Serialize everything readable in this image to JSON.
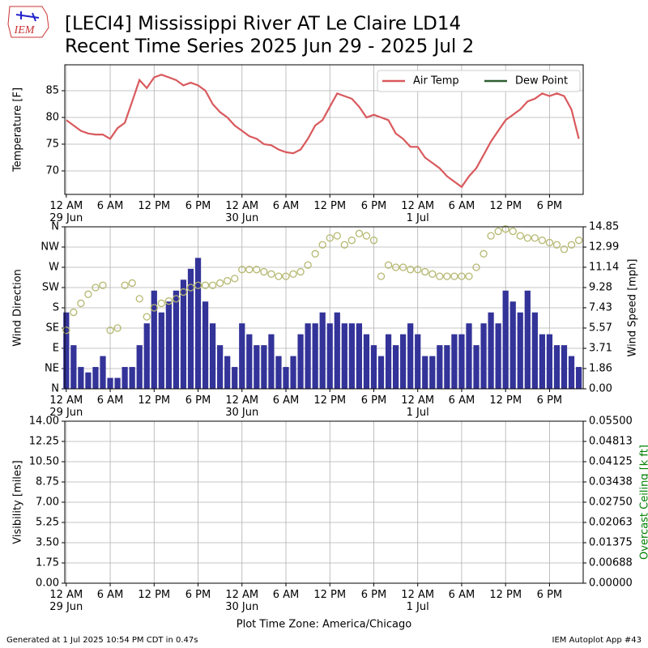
{
  "title": "[LECI4] Mississippi River  AT Le Claire LD14",
  "subtitle": "Recent Time Series 2025 Jun 29 - 2025 Jul 2",
  "logo": "IEM",
  "xlabel": "Plot Time Zone: America/Chicago",
  "footer_left": "Generated at 1 Jul 2025 10:54 PM CDT in 0.47s",
  "footer_right": "IEM Autoplot App #43",
  "chart_data": [
    {
      "type": "line",
      "ylabel": "Temperature [F]",
      "legend": "upper right",
      "grid": true,
      "xlim": [
        "2025-06-28 23:48",
        "2025-07-01 22:36"
      ],
      "xticks": [
        {
          "value": "2025-06-29 00:00",
          "label": "12 AM\n29 Jun"
        },
        {
          "value": "2025-06-29 06:00",
          "label": "6 AM"
        },
        {
          "value": "2025-06-29 12:00",
          "label": "12 PM"
        },
        {
          "value": "2025-06-29 18:00",
          "label": "6 PM"
        },
        {
          "value": "2025-06-30 00:00",
          "label": "12 AM\n30 Jun"
        },
        {
          "value": "2025-06-30 06:00",
          "label": "6 AM"
        },
        {
          "value": "2025-06-30 12:00",
          "label": "12 PM"
        },
        {
          "value": "2025-06-30 18:00",
          "label": "6 PM"
        },
        {
          "value": "2025-07-01 00:00",
          "label": "12 AM\n1 Jul"
        },
        {
          "value": "2025-07-01 06:00",
          "label": "6 AM"
        },
        {
          "value": "2025-07-01 12:00",
          "label": "12 PM"
        },
        {
          "value": "2025-07-01 18:00",
          "label": "6 PM"
        }
      ],
      "ylim": [
        65.6,
        89.85
      ],
      "yticks": [
        70,
        75,
        80,
        85
      ],
      "x": [
        "2025-06-29 00:00",
        "2025-06-29 01:00",
        "2025-06-29 02:00",
        "2025-06-29 03:00",
        "2025-06-29 04:00",
        "2025-06-29 05:00",
        "2025-06-29 06:00",
        "2025-06-29 07:00",
        "2025-06-29 08:00",
        "2025-06-29 09:00",
        "2025-06-29 10:00",
        "2025-06-29 11:00",
        "2025-06-29 12:00",
        "2025-06-29 13:00",
        "2025-06-29 14:00",
        "2025-06-29 15:00",
        "2025-06-29 16:00",
        "2025-06-29 17:00",
        "2025-06-29 18:00",
        "2025-06-29 19:00",
        "2025-06-29 20:00",
        "2025-06-29 21:00",
        "2025-06-29 22:00",
        "2025-06-29 23:00",
        "2025-06-30 00:00",
        "2025-06-30 01:00",
        "2025-06-30 02:00",
        "2025-06-30 03:00",
        "2025-06-30 04:00",
        "2025-06-30 05:00",
        "2025-06-30 06:00",
        "2025-06-30 07:00",
        "2025-06-30 08:00",
        "2025-06-30 09:00",
        "2025-06-30 10:00",
        "2025-06-30 11:00",
        "2025-06-30 12:00",
        "2025-06-30 13:00",
        "2025-06-30 14:00",
        "2025-06-30 15:00",
        "2025-06-30 16:00",
        "2025-06-30 17:00",
        "2025-06-30 18:00",
        "2025-06-30 19:00",
        "2025-06-30 20:00",
        "2025-06-30 21:00",
        "2025-06-30 22:00",
        "2025-06-30 23:00",
        "2025-07-01 00:00",
        "2025-07-01 01:00",
        "2025-07-01 02:00",
        "2025-07-01 03:00",
        "2025-07-01 04:00",
        "2025-07-01 05:00",
        "2025-07-01 06:00",
        "2025-07-01 07:00",
        "2025-07-01 08:00",
        "2025-07-01 09:00",
        "2025-07-01 10:00",
        "2025-07-01 11:00",
        "2025-07-01 12:00",
        "2025-07-01 13:00",
        "2025-07-01 14:00",
        "2025-07-01 15:00",
        "2025-07-01 16:00",
        "2025-07-01 17:00",
        "2025-07-01 18:00",
        "2025-07-01 19:00",
        "2025-07-01 20:00",
        "2025-07-01 21:00",
        "2025-07-01 22:00"
      ],
      "series": [
        {
          "name": "Air Temp",
          "color": "#d9595d",
          "values": [
            79.5,
            78.5,
            77.5,
            77,
            76.8,
            76.8,
            76,
            78,
            79,
            83,
            87,
            85.5,
            87.5,
            88,
            87.5,
            87,
            86,
            86.5,
            86,
            85,
            82.5,
            81,
            80,
            78.5,
            77.5,
            76.5,
            76,
            75,
            74.8,
            74,
            73.5,
            73.3,
            74,
            76,
            78.5,
            79.5,
            82,
            84.5,
            84,
            83.5,
            82,
            80,
            80.5,
            80,
            79.5,
            77,
            76,
            74.5,
            74.5,
            72.5,
            71.5,
            70.5,
            69,
            68,
            67,
            69,
            70.5,
            73,
            75.5,
            77.5,
            79.5,
            80.5,
            81.5,
            83,
            83.5,
            84.5,
            84,
            84.5,
            84,
            81.5,
            76
          ]
        },
        {
          "name": "Dew Point",
          "color": "#2e5e2e",
          "values": [
            null,
            null,
            null,
            null,
            null,
            null,
            null,
            null,
            null,
            null,
            null,
            null,
            null,
            null,
            null,
            null,
            null,
            null,
            null,
            null,
            null,
            null,
            null,
            null,
            null,
            null,
            null,
            null,
            null,
            null,
            null,
            null,
            null,
            null,
            null,
            null,
            null,
            null,
            null,
            null,
            null,
            null,
            null,
            null,
            null,
            null,
            null,
            null,
            null,
            null,
            null,
            null,
            null,
            null,
            null,
            null,
            null,
            null,
            null,
            null,
            null,
            null,
            null,
            null,
            null,
            null,
            null,
            null,
            null,
            null,
            null
          ]
        }
      ]
    },
    {
      "type": "bar",
      "ylabel": "Wind Direction",
      "y2label": "Wind Speed [mph]",
      "grid": true,
      "xlim": [
        "2025-06-28 23:48",
        "2025-07-01 22:36"
      ],
      "xticks": [
        {
          "value": "2025-06-29 00:00",
          "label": "12 AM\n29 Jun"
        },
        {
          "value": "2025-06-29 06:00",
          "label": "6 AM"
        },
        {
          "value": "2025-06-29 12:00",
          "label": "12 PM"
        },
        {
          "value": "2025-06-29 18:00",
          "label": "6 PM"
        },
        {
          "value": "2025-06-30 00:00",
          "label": "12 AM\n30 Jun"
        },
        {
          "value": "2025-06-30 06:00",
          "label": "6 AM"
        },
        {
          "value": "2025-06-30 12:00",
          "label": "12 PM"
        },
        {
          "value": "2025-06-30 18:00",
          "label": "6 PM"
        },
        {
          "value": "2025-07-01 00:00",
          "label": "12 AM\n1 Jul"
        },
        {
          "value": "2025-07-01 06:00",
          "label": "6 AM"
        },
        {
          "value": "2025-07-01 12:00",
          "label": "12 PM"
        },
        {
          "value": "2025-07-01 18:00",
          "label": "6 PM"
        }
      ],
      "ylim": [
        0,
        360
      ],
      "yticks": [
        {
          "value": 0,
          "label": "N"
        },
        {
          "value": 45,
          "label": "NE"
        },
        {
          "value": 90,
          "label": "E"
        },
        {
          "value": 135,
          "label": "SE"
        },
        {
          "value": 180,
          "label": "S"
        },
        {
          "value": 225,
          "label": "SW"
        },
        {
          "value": 270,
          "label": "W"
        },
        {
          "value": 315,
          "label": "NW"
        },
        {
          "value": 360,
          "label": "N"
        }
      ],
      "y2lim": [
        0,
        14.85
      ],
      "y2ticks": [
        {
          "value": 0,
          "label": "0.00"
        },
        1.86,
        3.71,
        5.57,
        7.43,
        9.28,
        11.14,
        12.99,
        14.85
      ],
      "x": [
        "2025-06-29 00:00",
        "2025-06-29 01:00",
        "2025-06-29 02:00",
        "2025-06-29 03:00",
        "2025-06-29 04:00",
        "2025-06-29 05:00",
        "2025-06-29 06:00",
        "2025-06-29 07:00",
        "2025-06-29 08:00",
        "2025-06-29 09:00",
        "2025-06-29 10:00",
        "2025-06-29 11:00",
        "2025-06-29 12:00",
        "2025-06-29 13:00",
        "2025-06-29 14:00",
        "2025-06-29 15:00",
        "2025-06-29 16:00",
        "2025-06-29 17:00",
        "2025-06-29 18:00",
        "2025-06-29 19:00",
        "2025-06-29 20:00",
        "2025-06-29 21:00",
        "2025-06-29 22:00",
        "2025-06-29 23:00",
        "2025-06-30 00:00",
        "2025-06-30 01:00",
        "2025-06-30 02:00",
        "2025-06-30 03:00",
        "2025-06-30 04:00",
        "2025-06-30 05:00",
        "2025-06-30 06:00",
        "2025-06-30 07:00",
        "2025-06-30 08:00",
        "2025-06-30 09:00",
        "2025-06-30 10:00",
        "2025-06-30 11:00",
        "2025-06-30 12:00",
        "2025-06-30 13:00",
        "2025-06-30 14:00",
        "2025-06-30 15:00",
        "2025-06-30 16:00",
        "2025-06-30 17:00",
        "2025-06-30 18:00",
        "2025-06-30 19:00",
        "2025-06-30 20:00",
        "2025-06-30 21:00",
        "2025-06-30 22:00",
        "2025-06-30 23:00",
        "2025-07-01 00:00",
        "2025-07-01 01:00",
        "2025-07-01 02:00",
        "2025-07-01 03:00",
        "2025-07-01 04:00",
        "2025-07-01 05:00",
        "2025-07-01 06:00",
        "2025-07-01 07:00",
        "2025-07-01 08:00",
        "2025-07-01 09:00",
        "2025-07-01 10:00",
        "2025-07-01 11:00",
        "2025-07-01 12:00",
        "2025-07-01 13:00",
        "2025-07-01 14:00",
        "2025-07-01 15:00",
        "2025-07-01 16:00",
        "2025-07-01 17:00",
        "2025-07-01 18:00",
        "2025-07-01 19:00",
        "2025-07-01 20:00",
        "2025-07-01 21:00",
        "2025-07-01 22:00"
      ],
      "series": [
        {
          "type": "bar",
          "axis": "y2",
          "color": "#333399",
          "values": [
            7,
            4,
            2,
            1.5,
            2,
            3,
            1,
            1,
            2,
            2,
            4,
            6,
            9,
            7,
            8,
            9,
            10,
            11,
            12,
            8,
            6,
            4,
            3,
            2,
            6,
            5,
            4,
            4,
            5,
            3,
            2,
            3,
            5,
            6,
            6,
            7,
            6,
            7,
            6,
            6,
            6,
            5,
            4,
            3,
            5,
            4,
            5,
            6,
            5,
            3,
            3,
            4,
            4,
            5,
            5,
            6,
            4,
            6,
            7,
            6,
            9,
            8,
            7,
            9,
            7,
            5,
            5,
            4,
            4,
            3,
            2
          ]
        },
        {
          "type": "scatter",
          "color": "#b5b870",
          "values": [
            130,
            170,
            190,
            210,
            225,
            230,
            130,
            135,
            230,
            235,
            200,
            160,
            180,
            190,
            195,
            200,
            215,
            225,
            230,
            230,
            230,
            235,
            240,
            245,
            265,
            265,
            265,
            260,
            255,
            250,
            250,
            255,
            260,
            275,
            300,
            320,
            335,
            340,
            320,
            330,
            345,
            340,
            330,
            250,
            275,
            270,
            270,
            265,
            265,
            260,
            255,
            250,
            250,
            250,
            250,
            250,
            270,
            300,
            340,
            350,
            355,
            350,
            340,
            335,
            335,
            330,
            325,
            320,
            310,
            320,
            330
          ]
        }
      ]
    },
    {
      "type": "line",
      "ylabel": "Visibility [miles]",
      "y2label": "Overcast Ceiling [k ft]",
      "y2color": "#008000",
      "grid": true,
      "xlim": [
        "2025-06-28 23:48",
        "2025-07-01 22:36"
      ],
      "xticks": [
        {
          "value": "2025-06-29 00:00",
          "label": "12 AM\n29 Jun"
        },
        {
          "value": "2025-06-29 06:00",
          "label": "6 AM"
        },
        {
          "value": "2025-06-29 12:00",
          "label": "12 PM"
        },
        {
          "value": "2025-06-29 18:00",
          "label": "6 PM"
        },
        {
          "value": "2025-06-30 00:00",
          "label": "12 AM\n30 Jun"
        },
        {
          "value": "2025-06-30 06:00",
          "label": "6 AM"
        },
        {
          "value": "2025-06-30 12:00",
          "label": "12 PM"
        },
        {
          "value": "2025-06-30 18:00",
          "label": "6 PM"
        },
        {
          "value": "2025-07-01 00:00",
          "label": "12 AM\n1 Jul"
        },
        {
          "value": "2025-07-01 06:00",
          "label": "6 AM"
        },
        {
          "value": "2025-07-01 12:00",
          "label": "12 PM"
        },
        {
          "value": "2025-07-01 18:00",
          "label": "6 PM"
        }
      ],
      "ylim": [
        0,
        14
      ],
      "yticks": [
        {
          "value": 0,
          "label": "0.00"
        },
        {
          "value": 1.75,
          "label": "1.75"
        },
        {
          "value": 3.5,
          "label": "3.50"
        },
        {
          "value": 5.25,
          "label": "5.25"
        },
        {
          "value": 7,
          "label": "7.00"
        },
        {
          "value": 8.75,
          "label": "8.75"
        },
        {
          "value": 10.5,
          "label": "10.50"
        },
        {
          "value": 12.25,
          "label": "12.25"
        },
        {
          "value": 14,
          "label": "14.00"
        }
      ],
      "y2lim": [
        0,
        0.055
      ],
      "y2ticks": [
        {
          "value": 0,
          "label": "0.00000"
        },
        {
          "value": 0.006875,
          "label": "0.00688"
        },
        {
          "value": 0.01375,
          "label": "0.01375"
        },
        {
          "value": 0.020625,
          "label": "0.02063"
        },
        {
          "value": 0.0275,
          "label": "0.02750"
        },
        {
          "value": 0.034375,
          "label": "0.03438"
        },
        {
          "value": 0.04125,
          "label": "0.04125"
        },
        {
          "value": 0.048125,
          "label": "0.04813"
        },
        {
          "value": 0.055,
          "label": "0.05500"
        }
      ],
      "series": []
    }
  ]
}
